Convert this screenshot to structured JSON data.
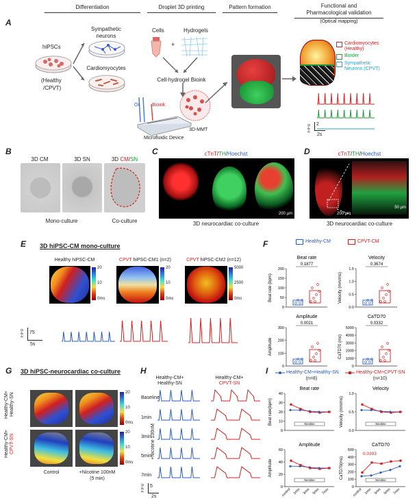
{
  "panelA": {
    "letter": "A",
    "headers": {
      "differentiation": "Differentiation",
      "droplet": "Droplet 3D printing",
      "pattern": "Pattern formation",
      "functional1": "Functional and",
      "functional2": "Pharmacological validation",
      "functional3": "(Optical mapping)"
    },
    "hipscs": "hiPSCs",
    "healthy": "(Healthy",
    "cpvt": "/CPVT)",
    "symp1": "Sympathetic",
    "symp2": "neurons",
    "cardio": "Cardiomyocytes",
    "cells": "Cells",
    "hydrogels": "Hydrogels",
    "plus": "+",
    "bioink_title": "Cell-hydrogel Bioink",
    "oil": "Oil",
    "bioink": "Bioink",
    "device": "Microfluidic Device",
    "mmt": "3D-MMT",
    "legend": [
      {
        "label1": "Cardiomyocytes",
        "label2": "(Healthy)",
        "color": "#d62020"
      },
      {
        "label1": "Border",
        "label2": "",
        "color": "#1f9a3a"
      },
      {
        "label1": "Sympathetic",
        "label2": "Neurons (CPVT)",
        "color": "#1fa7c9"
      }
    ],
    "scale_time": "2s",
    "scale_y": "F/F0",
    "scale_val": "2"
  },
  "panelB": {
    "letter": "B",
    "img1": "3D CM",
    "img2": "3D SN",
    "img3_a": "3D ",
    "img3_b": "CM",
    "img3_c": "/",
    "img3_d": "SN",
    "mono": "Mono-culture",
    "co": "Co-culture"
  },
  "panelC": {
    "letter": "C",
    "stain_a": "cTnT",
    "stain_b": "/",
    "stain_c": "TH",
    "stain_d": "/",
    "stain_e": "Hoechst",
    "caption": "3D neurocardiac co-culture",
    "scale": "200 µm"
  },
  "panelD": {
    "letter": "D",
    "stain_a": "cTnT",
    "stain_b": "/",
    "stain_c": "TH",
    "stain_d": "/",
    "stain_e": "Hoechst",
    "caption": "3D neurocardiac co-culture",
    "scale1": "200 µm",
    "scale2": "50 µm"
  },
  "panelE": {
    "letter": "E",
    "title": "3D hiPSC-CM mono-culture",
    "maps": [
      {
        "t1": "Healthy hiPSC-CM",
        "t2": "",
        "max": "20",
        "mid": "10",
        "min": "0ms"
      },
      {
        "t1": "CPVT",
        "t2": " hiPSC-CM1 (n=2)",
        "max": "20",
        "mid": "10",
        "min": "0ms"
      },
      {
        "t1": "CPVT",
        "t2": " hiPSC-CM2 (n=12)",
        "max": "5000",
        "mid": "2500",
        "min": "0ms"
      }
    ],
    "ylab": "F/F0",
    "yval": "75",
    "xval": "5s"
  },
  "panelF": {
    "letter": "F",
    "legend_healthy": "Healthy-CM",
    "legend_cpvt": "CPVT-CM",
    "plots": [
      {
        "title": "Beat rate",
        "p": "0.1877",
        "ylabel": "Beat rate (bpm)",
        "yticks": [
          "200",
          "150",
          "100",
          "50",
          "0"
        ]
      },
      {
        "title": "Velocity",
        "p": "0.3674",
        "ylabel": "Velocity (mm/ms)",
        "yticks": [
          "1.5",
          "1.0",
          "0.5",
          "0.0"
        ]
      },
      {
        "title": "Amplitude",
        "p": "0.0021",
        "ylabel": "Amplitude",
        "yticks": [
          "300",
          "200",
          "100",
          "0"
        ]
      },
      {
        "title": "CaTD70",
        "p": "0.0332",
        "ylabel": "CaTD70 (ms)",
        "yticks": [
          "5000",
          "4000",
          "3000",
          "2000",
          "1000",
          "0"
        ]
      }
    ]
  },
  "panelG": {
    "letter": "G",
    "title": "3D hiPSC-neurocardiac co-culture",
    "row1_a": "Healthy-CM+",
    "row1_b": "Healthy-SN",
    "row2_a": "Healthy-CM+",
    "row2_b": "CPVT-SN",
    "cb_max": "20",
    "cb_mid": "10",
    "cb_min": "0ms",
    "control": "Control",
    "nicotine1": "+Nicotine 100nM",
    "nicotine2": "(5 min)"
  },
  "panelH": {
    "letter": "H",
    "col1_a": "Healthy-CM+",
    "col1_b": "Healthy-SN",
    "col2_a": "Healthy-CM+",
    "col2_b": "CPVT-SN",
    "rows": [
      "Baseline",
      "1min",
      "3min",
      "5min",
      "7min"
    ],
    "side": "+Nicotine 100nM",
    "ylab": "F/F0",
    "yval": "5",
    "xval": "2s"
  },
  "panelI": {
    "letter": "I",
    "legend1": "Healthy-CM+Healthy-SN",
    "legend1_n": "(n=8)",
    "legend2": "Healthy-CM+CPVT-SN",
    "legend2_n": "(n=10)",
    "xcats": [
      "control",
      "1min",
      "3min",
      "5min",
      "7min"
    ],
    "nicotine": "Nicotine",
    "plots": [
      {
        "title": "Beat rate",
        "ylabel": "Beat rate(bpm)",
        "yticks": [
          "40",
          "30",
          "20",
          "10",
          "0"
        ]
      },
      {
        "title": "Velocity",
        "ylabel": "Velocity (mm/ms)",
        "yticks": [
          "1.0",
          "0.5",
          "0.0"
        ]
      },
      {
        "title": "Amplitude",
        "ylabel": "Amplitude",
        "yticks": [
          "60",
          "40",
          "20",
          "0"
        ]
      },
      {
        "title": "CaTD70",
        "ylabel": "CaTD70(ms)",
        "yticks": [
          "500",
          "400",
          "300",
          "200",
          "100",
          "0"
        ],
        "p": "0.0393"
      }
    ]
  },
  "colors": {
    "red": "#d62020",
    "green": "#1f9a3a",
    "blue": "#2a5bbf",
    "cyan": "#1fa7c9"
  }
}
